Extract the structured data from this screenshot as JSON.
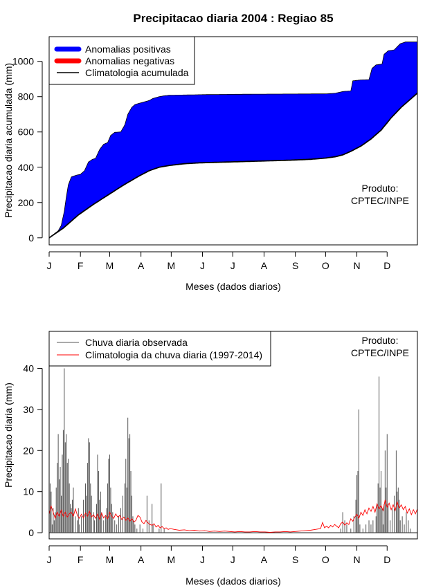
{
  "title": "Precipitacao diaria 2004 : Regiao 85",
  "colors": {
    "positive": "#0000ff",
    "negative": "#ff0000",
    "observed": "#555555",
    "climatology": "#ff0000"
  },
  "chart_data": [
    {
      "type": "area",
      "name": "accumulated",
      "xlabel": "Meses (dados diarios)",
      "ylabel": "Precipitacao diaria acumulada (mm)",
      "xlim": [
        1,
        366
      ],
      "ylim": [
        -40,
        1140
      ],
      "yticks": [
        0,
        200,
        400,
        600,
        800,
        1000
      ],
      "month_labels": [
        "J",
        "F",
        "M",
        "A",
        "M",
        "J",
        "J",
        "A",
        "S",
        "O",
        "N",
        "D"
      ],
      "month_days": [
        1,
        32,
        61,
        92,
        122,
        153,
        183,
        214,
        245,
        275,
        306,
        336
      ],
      "legend": [
        "Anomalias positivas",
        "Anomalias negativas",
        "Climatologia acumulada"
      ],
      "note": [
        "Produto:",
        "CPTEC/INPE"
      ],
      "observed_accum": [
        [
          1,
          0
        ],
        [
          5,
          18
        ],
        [
          10,
          40
        ],
        [
          13,
          70
        ],
        [
          16,
          150
        ],
        [
          18,
          230
        ],
        [
          20,
          300
        ],
        [
          23,
          345
        ],
        [
          28,
          355
        ],
        [
          32,
          360
        ],
        [
          36,
          380
        ],
        [
          40,
          430
        ],
        [
          44,
          445
        ],
        [
          47,
          450
        ],
        [
          51,
          500
        ],
        [
          55,
          530
        ],
        [
          59,
          540
        ],
        [
          62,
          580
        ],
        [
          66,
          598
        ],
        [
          72,
          600
        ],
        [
          76,
          640
        ],
        [
          79,
          700
        ],
        [
          83,
          740
        ],
        [
          86,
          755
        ],
        [
          90,
          762
        ],
        [
          95,
          770
        ],
        [
          100,
          778
        ],
        [
          104,
          790
        ],
        [
          110,
          800
        ],
        [
          115,
          805
        ],
        [
          120,
          808
        ],
        [
          140,
          810
        ],
        [
          160,
          812
        ],
        [
          200,
          814
        ],
        [
          240,
          815
        ],
        [
          275,
          816
        ],
        [
          281,
          818
        ],
        [
          285,
          820
        ],
        [
          293,
          830
        ],
        [
          300,
          832
        ],
        [
          302,
          890
        ],
        [
          310,
          895
        ],
        [
          318,
          896
        ],
        [
          321,
          960
        ],
        [
          325,
          980
        ],
        [
          331,
          985
        ],
        [
          333,
          1040
        ],
        [
          337,
          1060
        ],
        [
          343,
          1065
        ],
        [
          349,
          1100
        ],
        [
          354,
          1110
        ],
        [
          366,
          1110
        ]
      ],
      "climatology_accum": [
        [
          1,
          0
        ],
        [
          15,
          55
        ],
        [
          30,
          130
        ],
        [
          45,
          190
        ],
        [
          60,
          245
        ],
        [
          75,
          300
        ],
        [
          90,
          350
        ],
        [
          100,
          380
        ],
        [
          110,
          400
        ],
        [
          120,
          410
        ],
        [
          135,
          420
        ],
        [
          150,
          425
        ],
        [
          180,
          430
        ],
        [
          210,
          435
        ],
        [
          240,
          440
        ],
        [
          260,
          445
        ],
        [
          275,
          452
        ],
        [
          285,
          460
        ],
        [
          292,
          470
        ],
        [
          300,
          490
        ],
        [
          310,
          520
        ],
        [
          320,
          560
        ],
        [
          330,
          610
        ],
        [
          340,
          680
        ],
        [
          350,
          740
        ],
        [
          360,
          790
        ],
        [
          366,
          820
        ]
      ]
    },
    {
      "type": "bar",
      "name": "daily",
      "xlabel": "Meses (dados diarios)",
      "ylabel": "Precipitacao diaria (mm)",
      "xlim": [
        1,
        366
      ],
      "ylim": [
        -1.5,
        49
      ],
      "yticks": [
        0,
        10,
        20,
        30,
        40
      ],
      "month_labels": [
        "J",
        "F",
        "M",
        "A",
        "M",
        "J",
        "J",
        "A",
        "S",
        "O",
        "N",
        "D"
      ],
      "month_days": [
        1,
        32,
        61,
        92,
        122,
        153,
        183,
        214,
        245,
        275,
        306,
        336
      ],
      "legend": [
        "Chuva diaria observada",
        "Climatologia da chuva diaria (1997-2014)"
      ],
      "note": [
        "Produto:",
        "CPTEC/INPE"
      ],
      "observed_daily": [
        [
          2,
          12
        ],
        [
          3,
          10
        ],
        [
          4,
          2
        ],
        [
          5,
          6
        ],
        [
          6,
          3
        ],
        [
          7,
          5
        ],
        [
          8,
          11
        ],
        [
          9,
          17
        ],
        [
          10,
          24
        ],
        [
          11,
          13
        ],
        [
          12,
          16
        ],
        [
          13,
          9
        ],
        [
          14,
          19
        ],
        [
          15,
          25
        ],
        [
          16,
          40
        ],
        [
          17,
          22
        ],
        [
          18,
          24
        ],
        [
          19,
          17
        ],
        [
          20,
          18
        ],
        [
          21,
          12
        ],
        [
          22,
          7
        ],
        [
          23,
          6
        ],
        [
          24,
          8
        ],
        [
          25,
          11
        ],
        [
          27,
          4
        ],
        [
          29,
          3
        ],
        [
          30,
          6
        ],
        [
          31,
          2
        ],
        [
          33,
          4
        ],
        [
          35,
          8
        ],
        [
          37,
          12
        ],
        [
          38,
          9
        ],
        [
          39,
          17
        ],
        [
          40,
          23
        ],
        [
          41,
          22
        ],
        [
          42,
          12
        ],
        [
          43,
          9
        ],
        [
          45,
          5
        ],
        [
          46,
          3
        ],
        [
          48,
          7
        ],
        [
          49,
          19
        ],
        [
          50,
          15
        ],
        [
          51,
          8
        ],
        [
          52,
          10
        ],
        [
          53,
          5
        ],
        [
          55,
          3
        ],
        [
          57,
          4
        ],
        [
          58,
          6
        ],
        [
          59,
          12
        ],
        [
          60,
          18
        ],
        [
          61,
          19
        ],
        [
          62,
          11
        ],
        [
          63,
          7
        ],
        [
          64,
          5
        ],
        [
          66,
          3
        ],
        [
          68,
          2
        ],
        [
          70,
          4
        ],
        [
          72,
          6
        ],
        [
          74,
          9
        ],
        [
          76,
          12
        ],
        [
          77,
          18
        ],
        [
          78,
          11
        ],
        [
          79,
          28
        ],
        [
          80,
          23
        ],
        [
          81,
          24
        ],
        [
          82,
          15
        ],
        [
          83,
          9
        ],
        [
          84,
          4
        ],
        [
          85,
          3
        ],
        [
          86,
          2
        ],
        [
          88,
          1
        ],
        [
          91,
          2
        ],
        [
          94,
          1
        ],
        [
          98,
          9
        ],
        [
          100,
          3
        ],
        [
          103,
          7
        ],
        [
          104,
          2
        ],
        [
          110,
          1
        ],
        [
          112,
          12
        ],
        [
          115,
          1
        ],
        [
          290,
          1
        ],
        [
          292,
          5
        ],
        [
          294,
          3
        ],
        [
          296,
          2
        ],
        [
          300,
          1
        ],
        [
          303,
          4
        ],
        [
          305,
          8
        ],
        [
          306,
          14
        ],
        [
          307,
          15
        ],
        [
          308,
          30
        ],
        [
          309,
          2
        ],
        [
          312,
          1
        ],
        [
          315,
          2
        ],
        [
          318,
          3
        ],
        [
          320,
          2
        ],
        [
          322,
          3
        ],
        [
          325,
          4
        ],
        [
          326,
          7
        ],
        [
          327,
          12
        ],
        [
          328,
          38
        ],
        [
          329,
          11
        ],
        [
          330,
          15
        ],
        [
          331,
          6
        ],
        [
          332,
          2
        ],
        [
          333,
          7
        ],
        [
          334,
          20
        ],
        [
          335,
          11
        ],
        [
          336,
          24
        ],
        [
          337,
          7
        ],
        [
          339,
          3
        ],
        [
          341,
          6
        ],
        [
          343,
          9
        ],
        [
          345,
          20
        ],
        [
          346,
          10
        ],
        [
          347,
          11
        ],
        [
          348,
          8
        ],
        [
          349,
          3
        ],
        [
          351,
          4
        ],
        [
          353,
          2
        ],
        [
          355,
          5
        ],
        [
          357,
          3
        ],
        [
          359,
          1
        ]
      ],
      "climatology_daily": [
        [
          1,
          4.5
        ],
        [
          3,
          6.5
        ],
        [
          5,
          5
        ],
        [
          7,
          3.5
        ],
        [
          9,
          5
        ],
        [
          11,
          4
        ],
        [
          13,
          5.5
        ],
        [
          15,
          4
        ],
        [
          17,
          5
        ],
        [
          19,
          3.8
        ],
        [
          21,
          4.6
        ],
        [
          23,
          5
        ],
        [
          25,
          4
        ],
        [
          27,
          5.8
        ],
        [
          29,
          4.2
        ],
        [
          31,
          3.5
        ],
        [
          33,
          4.5
        ],
        [
          35,
          3.6
        ],
        [
          37,
          4.8
        ],
        [
          39,
          4
        ],
        [
          41,
          5.2
        ],
        [
          43,
          3.8
        ],
        [
          45,
          4.4
        ],
        [
          47,
          3.5
        ],
        [
          49,
          4.6
        ],
        [
          51,
          3.2
        ],
        [
          53,
          4.8
        ],
        [
          55,
          3.6
        ],
        [
          57,
          4.2
        ],
        [
          59,
          3.4
        ],
        [
          61,
          5
        ],
        [
          63,
          4
        ],
        [
          65,
          3.5
        ],
        [
          67,
          4.6
        ],
        [
          69,
          3.8
        ],
        [
          71,
          4.2
        ],
        [
          73,
          3.2
        ],
        [
          75,
          3.8
        ],
        [
          77,
          3
        ],
        [
          79,
          3.6
        ],
        [
          81,
          2.8
        ],
        [
          83,
          3.4
        ],
        [
          85,
          2.6
        ],
        [
          87,
          3
        ],
        [
          89,
          4.2
        ],
        [
          91,
          3.8
        ],
        [
          93,
          2.6
        ],
        [
          95,
          2.2
        ],
        [
          97,
          3
        ],
        [
          99,
          2.4
        ],
        [
          101,
          2
        ],
        [
          103,
          1.8
        ],
        [
          105,
          2.2
        ],
        [
          107,
          1.4
        ],
        [
          109,
          1.8
        ],
        [
          111,
          1.2
        ],
        [
          113,
          1.5
        ],
        [
          115,
          1
        ],
        [
          117,
          1.2
        ],
        [
          119,
          0.8
        ],
        [
          121,
          1
        ],
        [
          125,
          0.8
        ],
        [
          130,
          0.6
        ],
        [
          135,
          0.7
        ],
        [
          140,
          0.5
        ],
        [
          145,
          0.6
        ],
        [
          150,
          0.4
        ],
        [
          155,
          0.5
        ],
        [
          160,
          0.3
        ],
        [
          165,
          0.4
        ],
        [
          170,
          0.3
        ],
        [
          175,
          0.4
        ],
        [
          180,
          0.3
        ],
        [
          185,
          0.2
        ],
        [
          190,
          0.3
        ],
        [
          195,
          0.2
        ],
        [
          200,
          0.2
        ],
        [
          205,
          0.3
        ],
        [
          210,
          0.2
        ],
        [
          215,
          0.2
        ],
        [
          220,
          0.1
        ],
        [
          225,
          0.2
        ],
        [
          230,
          0.2
        ],
        [
          235,
          0.3
        ],
        [
          240,
          0.2
        ],
        [
          245,
          0.3
        ],
        [
          250,
          0.4
        ],
        [
          255,
          0.5
        ],
        [
          260,
          0.6
        ],
        [
          265,
          0.8
        ],
        [
          270,
          1
        ],
        [
          272,
          2.5
        ],
        [
          274,
          1.2
        ],
        [
          276,
          1.6
        ],
        [
          278,
          1.2
        ],
        [
          280,
          1.8
        ],
        [
          282,
          1.4
        ],
        [
          284,
          2
        ],
        [
          286,
          1.6
        ],
        [
          288,
          1.2
        ],
        [
          290,
          2.2
        ],
        [
          292,
          2.6
        ],
        [
          294,
          1.8
        ],
        [
          296,
          2.4
        ],
        [
          298,
          2
        ],
        [
          300,
          3.4
        ],
        [
          302,
          2.8
        ],
        [
          304,
          3.8
        ],
        [
          306,
          4.5
        ],
        [
          308,
          3.5
        ],
        [
          310,
          5
        ],
        [
          312,
          4.2
        ],
        [
          314,
          5.6
        ],
        [
          316,
          4.6
        ],
        [
          318,
          6
        ],
        [
          320,
          5.2
        ],
        [
          322,
          6.4
        ],
        [
          324,
          5
        ],
        [
          326,
          7
        ],
        [
          328,
          5.8
        ],
        [
          330,
          6.6
        ],
        [
          332,
          5.4
        ],
        [
          334,
          8
        ],
        [
          336,
          6.2
        ],
        [
          338,
          7.2
        ],
        [
          340,
          5.6
        ],
        [
          342,
          6.8
        ],
        [
          344,
          5.4
        ],
        [
          346,
          7.5
        ],
        [
          348,
          6
        ],
        [
          350,
          6.8
        ],
        [
          352,
          5.6
        ],
        [
          354,
          6.4
        ],
        [
          356,
          4.8
        ],
        [
          358,
          5.8
        ],
        [
          360,
          4.4
        ],
        [
          362,
          5.6
        ],
        [
          364,
          4.6
        ],
        [
          366,
          5.8
        ]
      ]
    }
  ]
}
